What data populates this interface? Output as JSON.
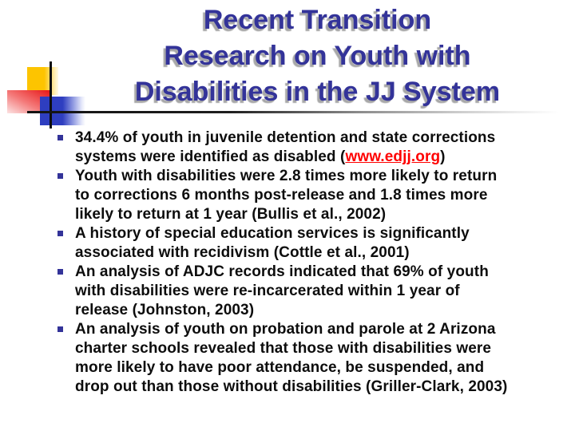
{
  "slide": {
    "title": {
      "lines": [
        "Recent Transition",
        "Research on Youth with",
        "Disabilities in the JJ System"
      ]
    },
    "bullets": [
      {
        "pre": [
          "34.4% of youth in juvenile detention and state corrections",
          "systems were identified as disabled ("
        ],
        "link": "www.edjj.org",
        "post": ")"
      },
      {
        "lines": [
          "Youth with disabilities were 2.8 times more likely to return",
          "to corrections 6 months post-release and 1.8 times more",
          "likely to return at 1 year (Bullis et al., 2002)"
        ]
      },
      {
        "lines": [
          "A history of special education services is significantly",
          "associated with recidivism (Cottle et al., 2001)"
        ]
      },
      {
        "lines": [
          "An analysis of ADJC records indicated that 69% of youth",
          "with disabilities were re-incarcerated within 1 year of",
          "release (Johnston, 2003)"
        ]
      },
      {
        "lines": [
          "An analysis of youth on probation and parole at 2 Arizona",
          "charter schools revealed that those with disabilities were",
          "more likely to have poor attendance, be suspended, and",
          "drop out than those without disabilities (Griller-Clark, 2003)"
        ]
      }
    ],
    "colors": {
      "title_text": "#333399",
      "title_shadow": "#a8a8a8",
      "body_text": "#0d0d0d",
      "link": "#ff0000",
      "bullet_marker": "#333399",
      "decor_yellow": "#fdc400",
      "decor_red": "#e81e1e",
      "decor_blue": "#2e3ec0",
      "rule_dark": "#141414"
    }
  }
}
